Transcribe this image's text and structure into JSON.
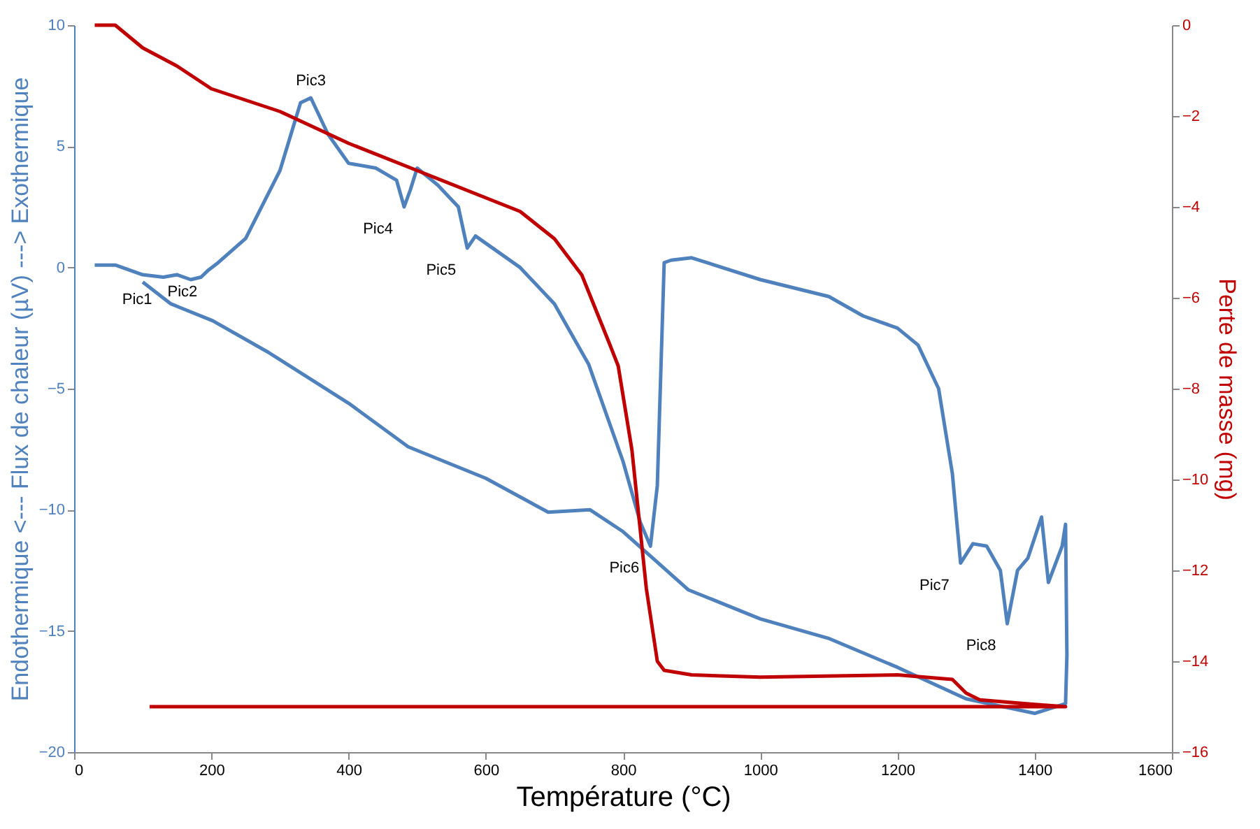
{
  "chart_data": {
    "type": "line",
    "xlabel": "Température (°C)",
    "ylabel": "Endothermique <--- Flux de chaleur (µV) ---> Exothermique",
    "y2label": "Perte de masse (mg)",
    "xlim": [
      0,
      1600
    ],
    "xticks": [
      0,
      200,
      400,
      600,
      800,
      1000,
      1200,
      1400,
      1600
    ],
    "ylim": [
      -20,
      10
    ],
    "yticks": [
      -20,
      -15,
      -10,
      -5,
      0,
      5,
      10
    ],
    "y2lim": [
      -16,
      0
    ],
    "y2ticks": [
      -16,
      -14,
      -12,
      -10,
      -8,
      -6,
      -4,
      -2,
      0
    ],
    "grid": false,
    "marker": "none",
    "line_style": "solid",
    "series": [
      {
        "color": "#4f81bd",
        "axis": "y",
        "x": [
          30,
          60,
          100,
          130,
          150,
          170,
          185,
          196,
          210,
          250,
          300,
          330,
          345,
          370,
          400,
          440,
          470,
          481,
          490,
          500,
          530,
          560,
          573,
          585,
          650,
          700,
          750,
          800,
          825,
          840,
          850,
          860,
          870,
          900,
          1000,
          1100,
          1150,
          1200,
          1230,
          1260,
          1280,
          1292,
          1310,
          1330,
          1350,
          1360,
          1375,
          1390,
          1410,
          1420,
          1440,
          1445,
          1447,
          1445,
          1400,
          1300,
          1200,
          1099,
          1000,
          895,
          800,
          752,
          691,
          600,
          487,
          400,
          283,
          202,
          141,
          100
        ],
        "values": [
          0.1,
          0.1,
          -0.3,
          -0.4,
          -0.3,
          -0.5,
          -0.4,
          -0.1,
          0.2,
          1.2,
          4.0,
          6.8,
          7.0,
          5.5,
          4.3,
          4.1,
          3.6,
          2.5,
          3.2,
          4.1,
          3.4,
          2.5,
          0.8,
          1.3,
          0.0,
          -1.5,
          -4.0,
          -8.0,
          -10.5,
          -11.5,
          -9.0,
          0.2,
          0.3,
          0.4,
          -0.5,
          -1.2,
          -2.0,
          -2.5,
          -3.2,
          -5.0,
          -8.5,
          -12.2,
          -11.4,
          -11.5,
          -12.5,
          -14.7,
          -12.5,
          -12.0,
          -10.3,
          -13.0,
          -11.5,
          -10.6,
          -16.0,
          -18.0,
          -18.4,
          -17.8,
          -16.5,
          -15.3,
          -14.5,
          -13.3,
          -10.9,
          -10.0,
          -10.1,
          -8.7,
          -7.4,
          -5.6,
          -3.5,
          -2.2,
          -1.5,
          -0.6
        ]
      },
      {
        "color": "#c00000",
        "axis": "y2",
        "x": [
          30,
          60,
          100,
          150,
          200,
          300,
          400,
          500,
          600,
          650,
          700,
          740,
          780,
          793,
          813,
          834,
          850,
          860,
          900,
          1000,
          1200,
          1280,
          1300,
          1320,
          1400,
          1445,
          1445,
          110
        ],
        "values": [
          0,
          0,
          -0.5,
          -0.9,
          -1.4,
          -1.9,
          -2.6,
          -3.2,
          -3.8,
          -4.1,
          -4.7,
          -5.5,
          -7.0,
          -7.5,
          -9.35,
          -12.4,
          -14.0,
          -14.2,
          -14.3,
          -14.35,
          -14.3,
          -14.4,
          -14.7,
          -14.85,
          -14.95,
          -15.0,
          -15.0,
          -15.0
        ]
      }
    ],
    "annotations": [
      {
        "text": "Pic1",
        "x": 130,
        "y": -0.4
      },
      {
        "text": "Pic2",
        "x": 196,
        "y": -0.1
      },
      {
        "text": "Pic3",
        "x": 345,
        "y": 7.0
      },
      {
        "text": "Pic4",
        "x": 481,
        "y": 2.5
      },
      {
        "text": "Pic5",
        "x": 573,
        "y": 0.8
      },
      {
        "text": "Pic6",
        "x": 840,
        "y": -11.5
      },
      {
        "text": "Pic7",
        "x": 1292,
        "y": -12.2
      },
      {
        "text": "Pic8",
        "x": 1360,
        "y": -14.7
      }
    ]
  }
}
